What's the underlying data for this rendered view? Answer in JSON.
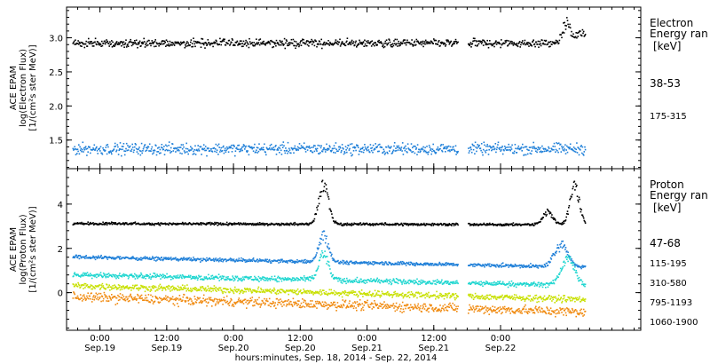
{
  "chart_data": [
    {
      "type": "scatter",
      "panel": "electron",
      "ylabel_lines": [
        "ACE EPAM",
        "log(Electron Flux)",
        "[1/(cm²s ster MeV)]"
      ],
      "ylim": [
        1.08,
        3.45
      ],
      "yticks": [
        1.5,
        2.0,
        2.5,
        3.0
      ],
      "ytick_labels": [
        "1.5",
        "2.0",
        "2.5",
        "3.0"
      ],
      "legend_title": [
        "Electron",
        "Energy ran",
        "[keV]"
      ],
      "series": [
        {
          "name": "38-53",
          "color": "#000000",
          "baseline": 2.93,
          "scatter": 0.05,
          "events": [
            {
              "x": 3.49,
              "peak": 0.3,
              "width": 0.04
            },
            {
              "x": 3.6,
              "peak": 0.15,
              "width": 0.05
            }
          ]
        },
        {
          "name": "175-315",
          "color": "#1e7fd8",
          "baseline": 1.38,
          "scatter": 0.07,
          "events": []
        }
      ]
    },
    {
      "type": "scatter",
      "panel": "proton",
      "ylabel_lines": [
        "ACE EPAM",
        "log(Proton Flux)",
        "[1/(cm²s ster MeV)]"
      ],
      "ylim": [
        -1.7,
        5.6
      ],
      "yticks": [
        0,
        2,
        4
      ],
      "ytick_labels": [
        "0",
        "2",
        "4"
      ],
      "legend_title": [
        "Proton",
        "Energy ran",
        "[keV]"
      ],
      "series": [
        {
          "name": "47-68",
          "color": "#000000",
          "baseline_start": 3.15,
          "baseline_end": 3.1,
          "scatter": 0.05,
          "events": [
            {
              "x": 1.67,
              "peak": 1.8,
              "width": 0.05
            },
            {
              "x": 3.35,
              "peak": 0.6,
              "width": 0.05
            },
            {
              "x": 3.55,
              "peak": 1.7,
              "width": 0.05
            }
          ]
        },
        {
          "name": "115-195",
          "color": "#1e7fd8",
          "baseline_start": 1.65,
          "baseline_end": 1.18,
          "scatter": 0.07,
          "events": [
            {
              "x": 1.67,
              "peak": 1.2,
              "width": 0.05
            },
            {
              "x": 3.45,
              "peak": 1.0,
              "width": 0.07
            }
          ]
        },
        {
          "name": "310-580",
          "color": "#1fd6d0",
          "baseline_start": 0.85,
          "baseline_end": 0.35,
          "scatter": 0.1,
          "events": [
            {
              "x": 1.67,
              "peak": 1.2,
              "width": 0.05
            },
            {
              "x": 3.5,
              "peak": 1.2,
              "width": 0.07
            }
          ]
        },
        {
          "name": "795-1193",
          "color": "#c8e000",
          "baseline_start": 0.35,
          "baseline_end": -0.28,
          "scatter": 0.12,
          "events": []
        },
        {
          "name": "1060-1900",
          "color": "#f08a10",
          "baseline_start": -0.15,
          "baseline_end": -0.85,
          "scatter": 0.18,
          "events": []
        }
      ]
    }
  ],
  "xaxis": {
    "xlim": [
      -0.25,
      4.05
    ],
    "data_gap": [
      2.68,
      2.75
    ],
    "data_end": 3.63,
    "ticks": [
      {
        "x": 0.0,
        "top": "0:00",
        "bottom": "Sep.19"
      },
      {
        "x": 0.5,
        "top": "12:00",
        "bottom": "Sep.19"
      },
      {
        "x": 1.0,
        "top": "0:00",
        "bottom": "Sep.20"
      },
      {
        "x": 1.5,
        "top": "12:00",
        "bottom": "Sep.20"
      },
      {
        "x": 2.0,
        "top": "0:00",
        "bottom": "Sep.21"
      },
      {
        "x": 2.5,
        "top": "12:00",
        "bottom": "Sep.21"
      },
      {
        "x": 3.0,
        "top": "0:00",
        "bottom": "Sep.22"
      }
    ],
    "xlabel": "hours:minutes, Sep. 18, 2014 - Sep. 22, 2014"
  }
}
